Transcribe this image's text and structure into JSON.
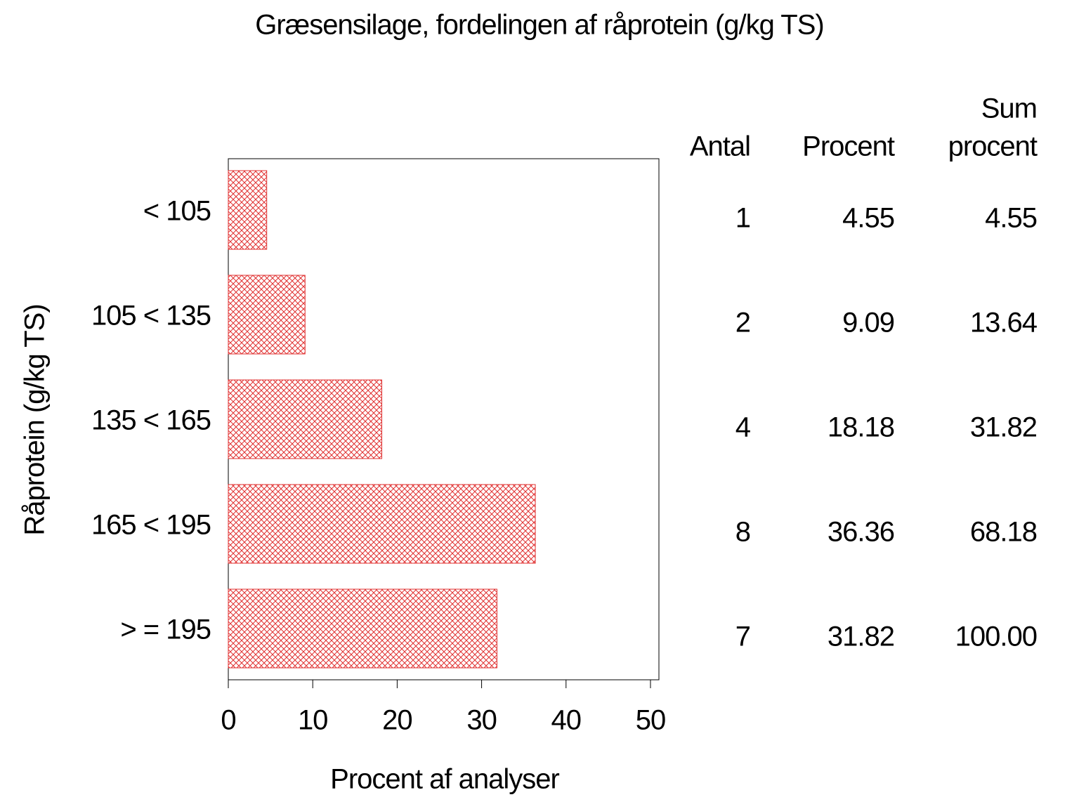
{
  "chart_data": {
    "type": "hbar",
    "title": "Græsensilage, fordelingen af råprotein (g/kg TS)",
    "x_label": "Procent af analyser",
    "y_label": "Råprotein (g/kg TS)",
    "categories": [
      "< 105",
      "105 < 135",
      "135 < 165",
      "165 < 195",
      "> = 195"
    ],
    "values": [
      4.55,
      9.09,
      18.18,
      36.36,
      31.82
    ],
    "color": "#e03030",
    "xlim": [
      0,
      51
    ],
    "xticks": [
      0,
      10,
      20,
      30,
      40,
      50
    ],
    "table": {
      "headers": [
        [
          "Antal"
        ],
        [
          "Procent"
        ],
        [
          "Sum",
          "procent"
        ]
      ],
      "antal": [
        1,
        2,
        4,
        8,
        7
      ],
      "sum_procent": [
        "4.55",
        "13.64",
        "31.82",
        "68.18",
        "100.00"
      ]
    }
  }
}
